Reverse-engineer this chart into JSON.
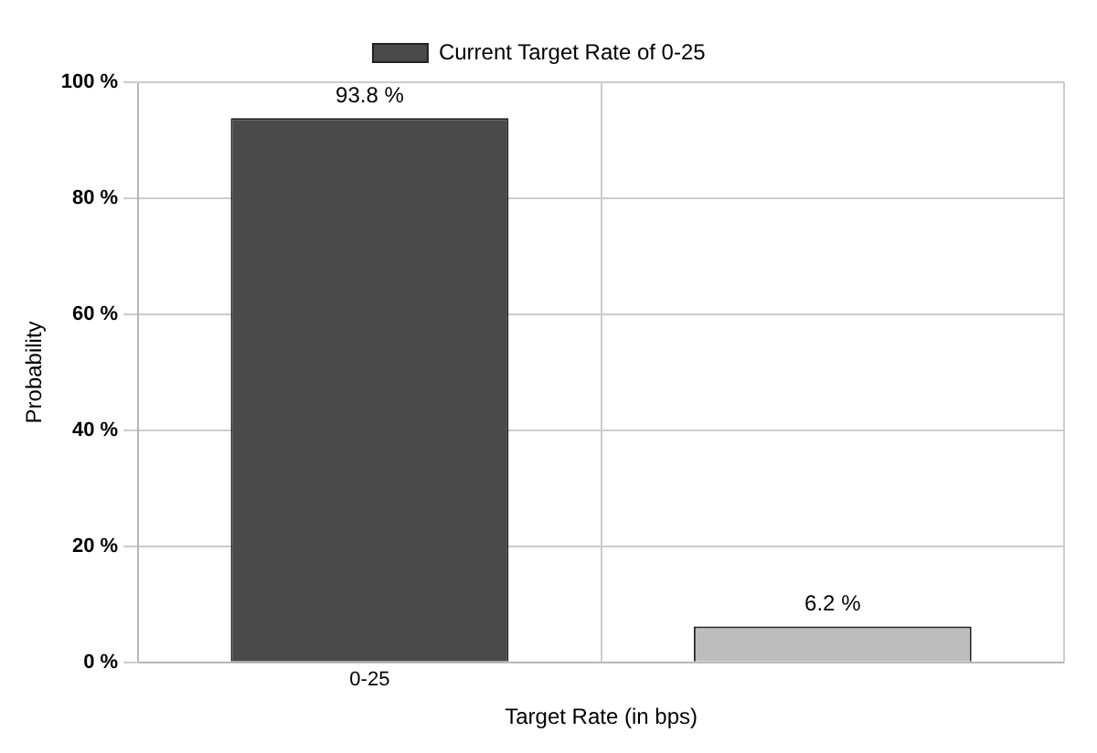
{
  "chart_data": {
    "type": "bar",
    "xlabel": "Target Rate (in bps)",
    "ylabel": "Probability",
    "categories": [
      "0-25",
      null
    ],
    "series": [
      {
        "name": "Current Target Rate of 0-25",
        "colors": [
          "#4a4a4a",
          "#bdbdbd"
        ],
        "values": [
          93.8,
          6.2
        ],
        "value_labels": [
          "93.8 %",
          "6.2 %"
        ]
      }
    ],
    "ylim": [
      0,
      100
    ],
    "yticks": [
      {
        "value": 0,
        "label": "0 %"
      },
      {
        "value": 20,
        "label": "20 %"
      },
      {
        "value": 40,
        "label": "40 %"
      },
      {
        "value": 60,
        "label": "60 %"
      },
      {
        "value": 80,
        "label": "80 %"
      },
      {
        "value": 100,
        "label": "100 %"
      }
    ],
    "grid": true,
    "legend": "top"
  }
}
